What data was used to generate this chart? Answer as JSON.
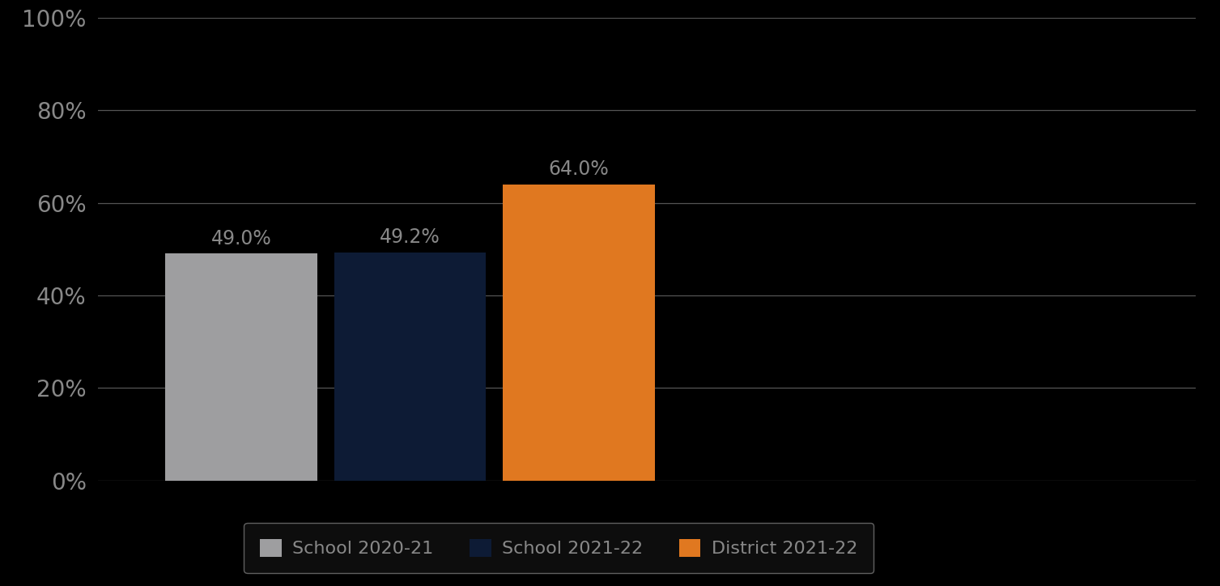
{
  "categories": [
    "School 2020-21",
    "School 2021-22",
    "District 2021-22"
  ],
  "values": [
    0.49,
    0.492,
    0.64
  ],
  "bar_colors": [
    "#9E9EA0",
    "#0D1B35",
    "#E07820"
  ],
  "value_labels": [
    "49.0%",
    "49.2%",
    "64.0%"
  ],
  "ylim": [
    0,
    1.0
  ],
  "yticks": [
    0,
    0.2,
    0.4,
    0.6,
    0.8,
    1.0
  ],
  "ytick_labels": [
    "0%",
    "20%",
    "40%",
    "60%",
    "80%",
    "100%"
  ],
  "background_color": "#000000",
  "plot_bg_color": "#000000",
  "grid_color": "#555555",
  "text_color": "#888888",
  "label_color": "#888888",
  "legend_bg": "#111111",
  "legend_edge": "#777777",
  "bar_width": 0.18,
  "value_label_fontsize": 17,
  "tick_fontsize": 20,
  "legend_fontsize": 16,
  "x_positions": [
    0.22,
    0.42,
    0.62
  ],
  "xlim": [
    0.05,
    1.35
  ]
}
